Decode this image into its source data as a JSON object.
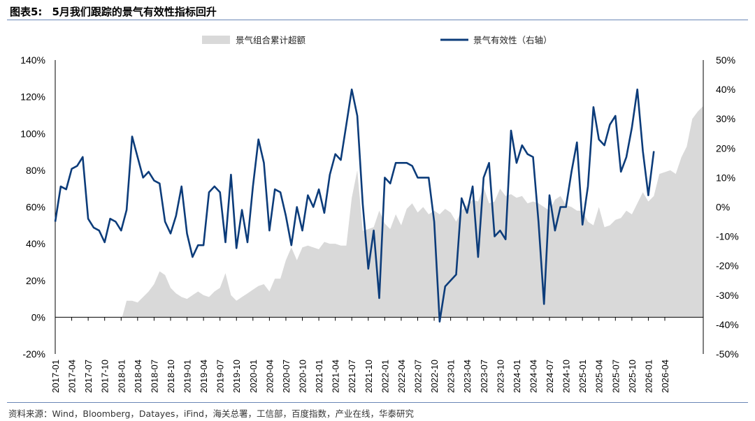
{
  "header": {
    "figure_label": "图表5:",
    "title": "5月我们跟踪的景气有效性指标回升"
  },
  "source": "资料来源：Wind，Bloomberg，Datayes，iFind，海关总署，工信部，百度指数，产业在线，华泰研究",
  "colors": {
    "area": "#d9d9d9",
    "line": "#0c3c7a",
    "axis": "#000000"
  },
  "chart_data": {
    "type": "area+line",
    "legend": {
      "position": "top",
      "items": [
        "景气组合累计超额",
        "景气有效性（右轴）"
      ]
    },
    "x_labels": [
      "2017-01",
      "2017-04",
      "2017-07",
      "2017-10",
      "2018-01",
      "2018-04",
      "2018-07",
      "2018-10",
      "2019-01",
      "2019-04",
      "2019-07",
      "2019-10",
      "2020-01",
      "2020-04",
      "2020-07",
      "2020-10",
      "2021-01",
      "2021-04",
      "2021-07",
      "2021-10",
      "2022-01",
      "2022-04",
      "2022-07",
      "2022-10",
      "2023-01",
      "2023-04",
      "2023-07",
      "2023-10",
      "2024-01",
      "2024-04",
      "2024-07",
      "2024-10",
      "2025-01",
      "2025-04",
      "2025-07",
      "2025-10",
      "2026-01",
      "2026-04"
    ],
    "left_axis": {
      "ticks": [
        "140%",
        "120%",
        "100%",
        "80%",
        "60%",
        "40%",
        "20%",
        "0%",
        "-20%"
      ],
      "ylim": [
        -20,
        140
      ],
      "step": 20
    },
    "right_axis": {
      "ticks": [
        "50%",
        "40%",
        "30%",
        "20%",
        "10%",
        "0%",
        "-10%",
        "-20%",
        "-30%",
        "-40%",
        "-50%"
      ],
      "ylim": [
        -50,
        50
      ],
      "step": 10
    },
    "series": [
      {
        "name": "景气组合累计超额",
        "axis": "left",
        "style": "area",
        "values": [
          null,
          null,
          null,
          null,
          null,
          null,
          null,
          null,
          null,
          null,
          null,
          null,
          -2,
          9,
          9,
          8,
          11,
          14,
          18,
          25,
          23,
          16,
          13,
          11,
          10,
          12,
          14,
          12,
          11,
          14,
          16,
          24,
          12,
          9,
          11,
          13,
          15,
          17,
          18,
          14,
          21,
          21,
          31,
          38,
          31,
          38,
          39,
          38,
          37,
          41,
          40,
          40,
          39,
          39,
          65,
          80,
          47,
          48,
          49,
          58,
          51,
          48,
          56,
          50,
          59,
          62,
          57,
          60,
          56,
          58,
          56,
          59,
          57,
          52,
          58,
          61,
          64,
          63,
          71,
          62,
          63,
          70,
          66,
          67,
          65,
          66,
          62,
          63,
          62,
          60,
          58,
          64,
          66,
          61,
          60,
          58,
          58,
          52,
          50,
          60,
          49,
          50,
          53,
          54,
          58,
          56,
          62,
          68,
          63,
          66,
          78,
          79,
          80,
          78,
          87,
          93,
          108,
          112,
          115
        ]
      },
      {
        "name": "景气有效性（右轴）",
        "axis": "right",
        "style": "line",
        "values": [
          -5,
          7,
          6,
          13,
          14,
          17,
          -4,
          -7,
          -8,
          -12,
          -4,
          -5,
          -8,
          -1,
          24,
          17,
          10,
          12,
          9,
          8,
          -5,
          -9,
          -3,
          7,
          -9,
          -17,
          -13,
          -13,
          5,
          7,
          5,
          -12,
          11,
          -14,
          -1,
          -12,
          7,
          23,
          15,
          -8,
          6,
          5,
          -3,
          -13,
          0,
          -8,
          4,
          0,
          6,
          -2,
          11,
          18,
          16,
          28,
          40,
          31,
          1,
          -21,
          -8,
          -31,
          10,
          8,
          15,
          15,
          15,
          14,
          10,
          10,
          10,
          -5,
          -39,
          -27,
          -25,
          -23,
          3,
          -2,
          7,
          -17,
          10,
          15,
          -10,
          -8,
          -11,
          26,
          15,
          21,
          18,
          17,
          -5,
          -33,
          4,
          -8,
          0,
          0,
          12,
          22,
          -6,
          7,
          34,
          23,
          21,
          28,
          31,
          12,
          17,
          27,
          40,
          19,
          4,
          19
        ]
      }
    ]
  }
}
